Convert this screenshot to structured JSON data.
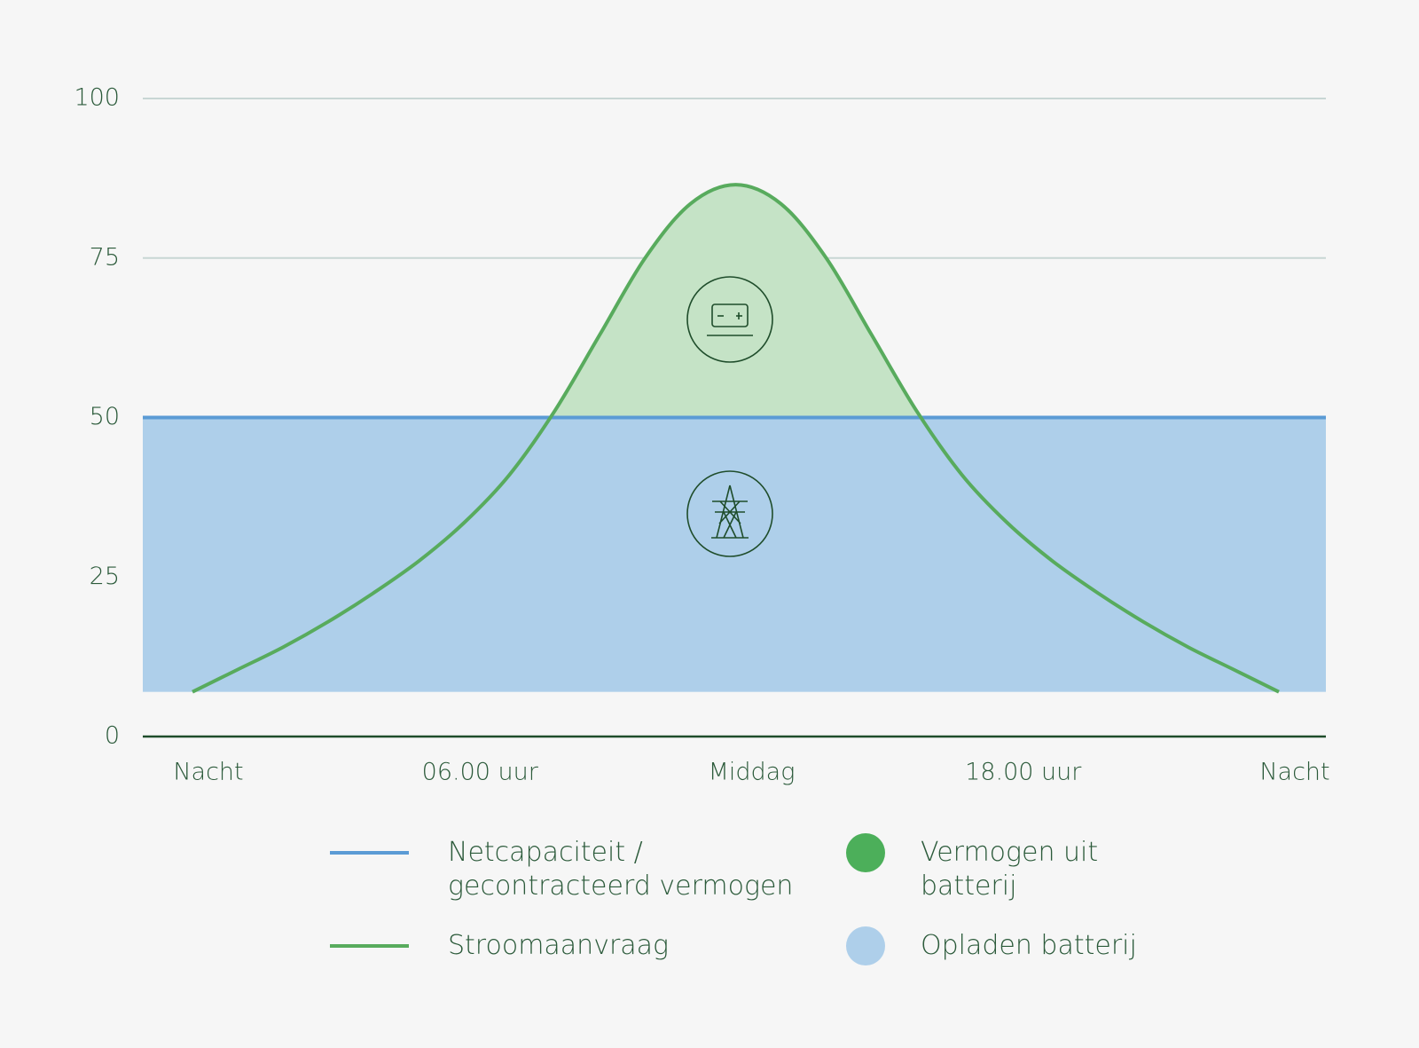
{
  "chart_data": {
    "type": "line",
    "categories": [
      "Nacht",
      null,
      null,
      null,
      null,
      null,
      "06.00 uur",
      null,
      null,
      null,
      null,
      null,
      "Middag",
      null,
      null,
      null,
      null,
      null,
      "18.00 uur",
      null,
      null,
      null,
      null,
      null,
      "Nacht"
    ],
    "series": [
      {
        "name": "Netcapaciteit / gecontracteerd vermogen",
        "color": "#5b9bd5",
        "values": [
          50,
          50,
          50,
          50,
          50,
          50,
          50,
          50,
          50,
          50,
          50,
          50,
          50,
          50,
          50,
          50,
          50,
          50,
          50,
          50,
          50,
          50,
          50,
          50,
          50
        ]
      },
      {
        "name": "Stroomaanvraag",
        "color": "#58ab5d",
        "values": [
          7,
          10.5,
          14,
          18,
          22.5,
          27.5,
          33.5,
          41,
          51,
          63,
          75,
          83.5,
          86.5,
          83.5,
          75,
          63,
          51,
          41,
          33.5,
          27.5,
          22.5,
          18,
          14,
          10.5,
          7
        ]
      }
    ],
    "areas": [
      {
        "name": "Vermogen uit batterij",
        "color": "#4caf5a",
        "fill": "#c5e3c6"
      },
      {
        "name": "Opladen batterij",
        "color": "#aecfea",
        "fill": "#aecfea"
      }
    ],
    "ylim": [
      0,
      100
    ],
    "yticks": [
      0,
      25,
      50,
      75,
      100
    ],
    "grid": true
  }
}
